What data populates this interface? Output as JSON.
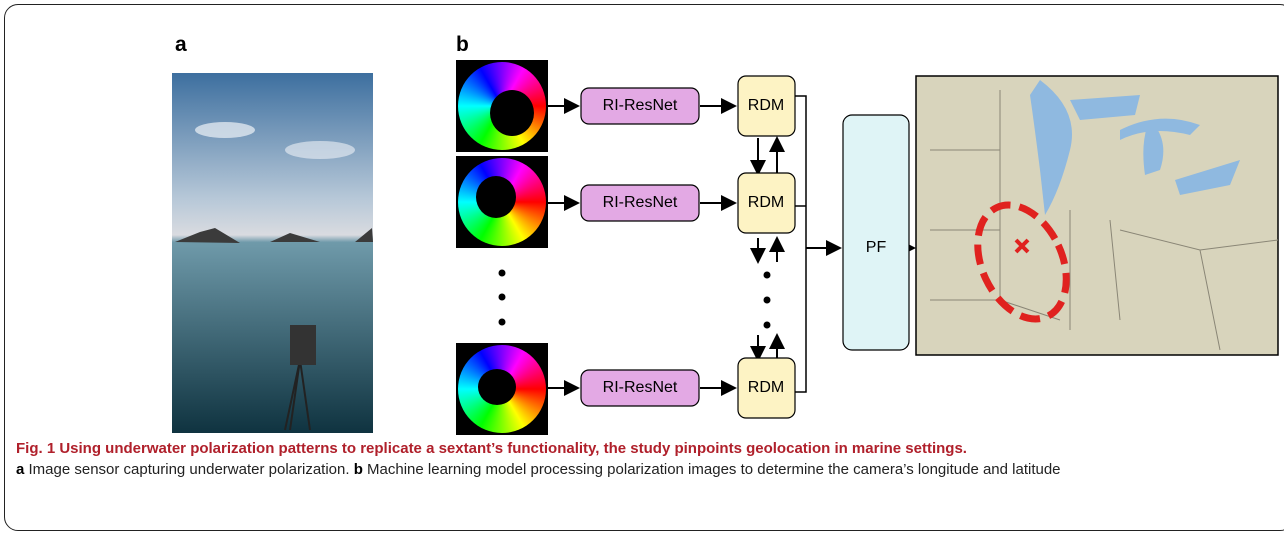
{
  "panels": {
    "a": {
      "label": "a"
    },
    "b": {
      "label": "b"
    }
  },
  "nodes": {
    "resnet": [
      "RI-ResNet",
      "RI-ResNet",
      "RI-ResNet"
    ],
    "rdm": [
      "RDM",
      "RDM",
      "RDM"
    ],
    "pf": "PF"
  },
  "caption": {
    "title": "Fig. 1 Using underwater polarization patterns to replicate a sextant’s functionality, the study pinpoints geolocation in marine settings.",
    "a_label": "a",
    "a_text": "Image sensor capturing underwater polarization.",
    "b_label": "b",
    "b_text": "Machine learning model processing polarization images to determine the camera’s longitude and latitude"
  }
}
